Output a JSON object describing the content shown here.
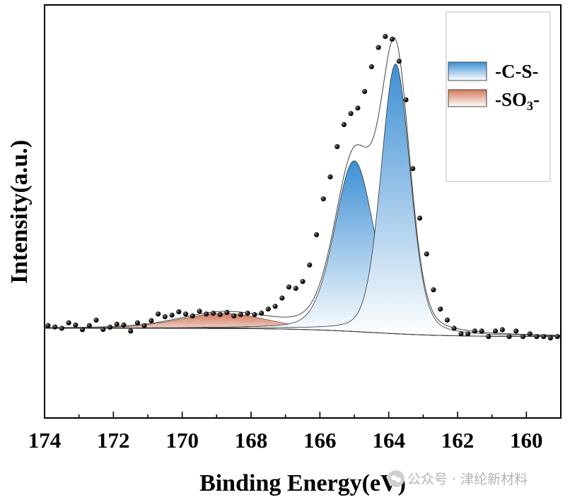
{
  "chart_data": {
    "type": "line",
    "xlabel": "Binding Energy(eV)",
    "ylabel": "Intensity(a.u.)",
    "xlim": [
      174,
      159
    ],
    "x_reversed": true,
    "x_ticks": [
      174,
      172,
      170,
      168,
      166,
      164,
      162,
      160
    ],
    "grid": false,
    "legend_position": "top-right",
    "legend": [
      {
        "label": "-C-S-",
        "color": "#4a9ad6"
      },
      {
        "label": "-SO",
        "subscript": "3",
        "suffix": "-",
        "color": "#d58a6e"
      }
    ],
    "series": [
      {
        "name": "-C-S-",
        "type": "peak",
        "peaks": [
          {
            "center": 165.0,
            "height": 0.62,
            "fwhm": 1.35
          },
          {
            "center": 163.8,
            "height": 0.98,
            "fwhm": 1.0
          }
        ],
        "fill_top": "#3d8fd4",
        "fill_bottom": "#ffffff"
      },
      {
        "name": "-SO3-",
        "type": "peak",
        "peaks": [
          {
            "center": 168.8,
            "height": 0.055,
            "fwhm": 3.0
          }
        ],
        "fill_top": "#d2785a",
        "fill_bottom": "#ffffff"
      },
      {
        "name": "Raw",
        "type": "scatter",
        "x": [
          173.9,
          173.7,
          173.5,
          173.3,
          173.1,
          172.9,
          172.7,
          172.5,
          172.3,
          172.1,
          171.9,
          171.7,
          171.5,
          171.3,
          171.1,
          170.9,
          170.7,
          170.5,
          170.3,
          170.1,
          169.9,
          169.7,
          169.5,
          169.3,
          169.1,
          168.9,
          168.7,
          168.5,
          168.3,
          168.1,
          167.9,
          167.7,
          167.5,
          167.3,
          167.1,
          166.9,
          166.7,
          166.5,
          166.3,
          166.1,
          165.9,
          165.7,
          165.5,
          165.3,
          165.1,
          164.9,
          164.7,
          164.5,
          164.3,
          164.1,
          163.9,
          163.7,
          163.5,
          163.3,
          163.1,
          162.9,
          162.7,
          162.5,
          162.3,
          162.1,
          161.9,
          161.7,
          161.5,
          161.3,
          161.1,
          160.9,
          160.7,
          160.5,
          160.3,
          160.1,
          159.9,
          159.7,
          159.5,
          159.3,
          159.1
        ],
        "y": [
          0.01,
          0.005,
          0.0,
          0.02,
          0.012,
          -0.005,
          0.01,
          0.03,
          -0.004,
          0.004,
          0.015,
          0.012,
          -0.01,
          0.02,
          0.01,
          0.028,
          0.052,
          0.042,
          0.048,
          0.06,
          0.052,
          0.045,
          0.062,
          0.052,
          0.055,
          0.05,
          0.058,
          0.045,
          0.05,
          0.055,
          0.05,
          0.055,
          0.07,
          0.08,
          0.11,
          0.15,
          0.145,
          0.17,
          0.23,
          0.34,
          0.47,
          0.55,
          0.66,
          0.74,
          0.78,
          0.8,
          0.86,
          0.95,
          1.02,
          1.06,
          1.05,
          0.97,
          0.83,
          0.58,
          0.4,
          0.27,
          0.14,
          0.07,
          0.03,
          0.0,
          -0.02,
          -0.02,
          -0.01,
          -0.01,
          -0.03,
          -0.01,
          -0.005,
          -0.03,
          -0.01,
          -0.03,
          -0.02,
          -0.03,
          -0.03,
          -0.035,
          -0.03
        ],
        "color": "#111111"
      },
      {
        "name": "Envelope",
        "type": "line",
        "color": "#444444"
      },
      {
        "name": "Background",
        "type": "line",
        "baseline_left": 0.0,
        "baseline_right": -0.03,
        "step_center": 164.5,
        "color": "#333333"
      }
    ]
  },
  "watermark": {
    "text": "公众号 · 津纶新材料",
    "icon": "wechat-icon"
  }
}
